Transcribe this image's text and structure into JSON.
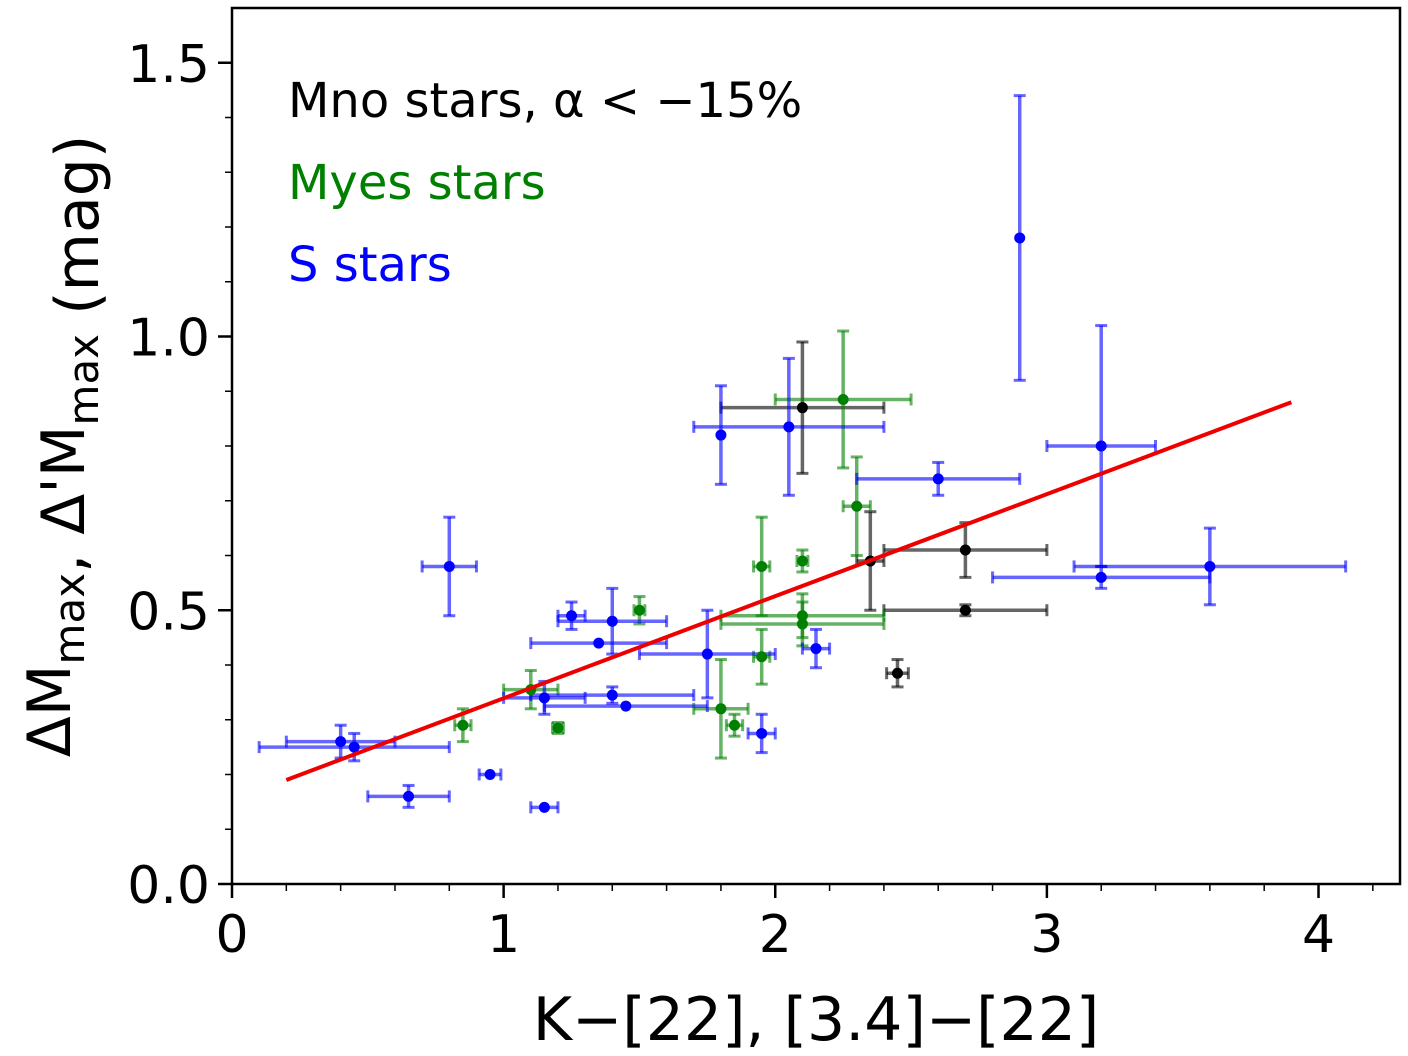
{
  "chart_data": {
    "type": "scatter",
    "xlabel": "K−[22], [3.4]−[22]",
    "ylabel": "ΔM_max, Δ'M_max (mag)",
    "xlim": [
      0,
      4.3
    ],
    "ylim": [
      0,
      1.6
    ],
    "x_ticks": [
      "0",
      "1",
      "2",
      "3",
      "4"
    ],
    "y_ticks": [
      "0.0",
      "0.5",
      "1.0",
      "1.5"
    ],
    "x_tick_values": [
      0,
      1,
      2,
      3,
      4
    ],
    "y_tick_values": [
      0,
      0.5,
      1.0,
      1.5
    ],
    "legend": {
      "placement": "top-left",
      "entries": [
        {
          "label": "Mno stars, α < −15%",
          "color": "#000000"
        },
        {
          "label": "Myes stars",
          "color": "#008000"
        },
        {
          "label": "S stars",
          "color": "#0000ff"
        }
      ]
    },
    "series": [
      {
        "name": "Mno stars",
        "color": "#000000",
        "points": [
          {
            "x": 2.1,
            "y": 0.87,
            "xerr": 0.3,
            "yerr": 0.12
          },
          {
            "x": 2.35,
            "y": 0.59,
            "xerr": 0.05,
            "yerr": 0.09
          },
          {
            "x": 2.7,
            "y": 0.61,
            "xerr": 0.3,
            "yerr": 0.05
          },
          {
            "x": 2.7,
            "y": 0.5,
            "xerr": 0.3,
            "yerr": 0.01
          },
          {
            "x": 2.45,
            "y": 0.385,
            "xerr": 0.04,
            "yerr": 0.025
          }
        ]
      },
      {
        "name": "Myes stars",
        "color": "#008000",
        "points": [
          {
            "x": 2.25,
            "y": 0.885,
            "xerr": 0.25,
            "yerr": 0.125
          },
          {
            "x": 2.3,
            "y": 0.69,
            "xerr": 0.05,
            "yerr": 0.09
          },
          {
            "x": 1.95,
            "y": 0.58,
            "xerr": 0.03,
            "yerr": 0.09
          },
          {
            "x": 2.1,
            "y": 0.59,
            "xerr": 0.02,
            "yerr": 0.02
          },
          {
            "x": 1.5,
            "y": 0.5,
            "xerr": 0.02,
            "yerr": 0.025
          },
          {
            "x": 2.1,
            "y": 0.49,
            "xerr": 0.3,
            "yerr": 0.04
          },
          {
            "x": 2.1,
            "y": 0.475,
            "xerr": 0.3,
            "yerr": 0.04
          },
          {
            "x": 1.95,
            "y": 0.415,
            "xerr": 0.03,
            "yerr": 0.05
          },
          {
            "x": 1.1,
            "y": 0.355,
            "xerr": 0.1,
            "yerr": 0.035
          },
          {
            "x": 1.8,
            "y": 0.32,
            "xerr": 0.1,
            "yerr": 0.09
          },
          {
            "x": 1.85,
            "y": 0.29,
            "xerr": 0.03,
            "yerr": 0.02
          },
          {
            "x": 0.85,
            "y": 0.29,
            "xerr": 0.03,
            "yerr": 0.03
          },
          {
            "x": 1.2,
            "y": 0.285,
            "xerr": 0.02,
            "yerr": 0.01
          }
        ]
      },
      {
        "name": "S stars",
        "color": "#0000ff",
        "points": [
          {
            "x": 2.9,
            "y": 1.18,
            "xerr": 0.0,
            "yerr": 0.26
          },
          {
            "x": 3.2,
            "y": 0.8,
            "xerr": 0.2,
            "yerr": 0.22
          },
          {
            "x": 2.05,
            "y": 0.835,
            "xerr": 0.35,
            "yerr": 0.125
          },
          {
            "x": 1.8,
            "y": 0.82,
            "xerr": 0.0,
            "yerr": 0.09
          },
          {
            "x": 2.6,
            "y": 0.74,
            "xerr": 0.3,
            "yerr": 0.03
          },
          {
            "x": 0.8,
            "y": 0.58,
            "xerr": 0.1,
            "yerr": 0.09
          },
          {
            "x": 3.2,
            "y": 0.56,
            "xerr": 0.4,
            "yerr": 0.02
          },
          {
            "x": 3.6,
            "y": 0.58,
            "xerr": 0.5,
            "yerr": 0.07
          },
          {
            "x": 1.25,
            "y": 0.49,
            "xerr": 0.05,
            "yerr": 0.025
          },
          {
            "x": 1.4,
            "y": 0.48,
            "xerr": 0.2,
            "yerr": 0.06
          },
          {
            "x": 1.35,
            "y": 0.44,
            "xerr": 0.25,
            "yerr": 0.0
          },
          {
            "x": 1.75,
            "y": 0.42,
            "xerr": 0.25,
            "yerr": 0.08
          },
          {
            "x": 2.15,
            "y": 0.43,
            "xerr": 0.05,
            "yerr": 0.035
          },
          {
            "x": 1.4,
            "y": 0.345,
            "xerr": 0.3,
            "yerr": 0.015
          },
          {
            "x": 1.15,
            "y": 0.34,
            "xerr": 0.15,
            "yerr": 0.03
          },
          {
            "x": 1.45,
            "y": 0.325,
            "xerr": 0.3,
            "yerr": 0.0
          },
          {
            "x": 1.95,
            "y": 0.275,
            "xerr": 0.05,
            "yerr": 0.035
          },
          {
            "x": 0.4,
            "y": 0.26,
            "xerr": 0.2,
            "yerr": 0.03
          },
          {
            "x": 0.45,
            "y": 0.25,
            "xerr": 0.35,
            "yerr": 0.025
          },
          {
            "x": 0.95,
            "y": 0.2,
            "xerr": 0.04,
            "yerr": 0.0
          },
          {
            "x": 0.65,
            "y": 0.16,
            "xerr": 0.15,
            "yerr": 0.02
          },
          {
            "x": 1.15,
            "y": 0.14,
            "xerr": 0.05,
            "yerr": 0.0
          }
        ]
      }
    ],
    "fit_line": {
      "color": "#ee0000",
      "x": [
        0.2,
        3.9
      ],
      "y": [
        0.19,
        0.88
      ]
    }
  }
}
